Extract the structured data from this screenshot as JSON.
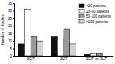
{
  "chart_data": {
    "type": "bar",
    "ylabel": "Number of Studies",
    "categories": [
      "SCIT",
      "SLIT",
      "SCIT vs SLIT"
    ],
    "series": [
      {
        "name": "<20 patients",
        "color": "#111111",
        "values": [
          8,
          13,
          1
        ]
      },
      {
        "name": "20-50 patients",
        "color": "#ffffff",
        "values": [
          31,
          12,
          2
        ]
      },
      {
        "name": "50-100 patients",
        "color": "#999999",
        "values": [
          13,
          18,
          2
        ]
      },
      {
        "name": ">100 patients",
        "color": "#d4d4d4",
        "values": [
          10,
          8,
          0
        ]
      }
    ],
    "ylim": [
      0,
      35
    ],
    "yticks": [
      0,
      5,
      10,
      15,
      20,
      25,
      30,
      35
    ],
    "legend": "upper right"
  }
}
